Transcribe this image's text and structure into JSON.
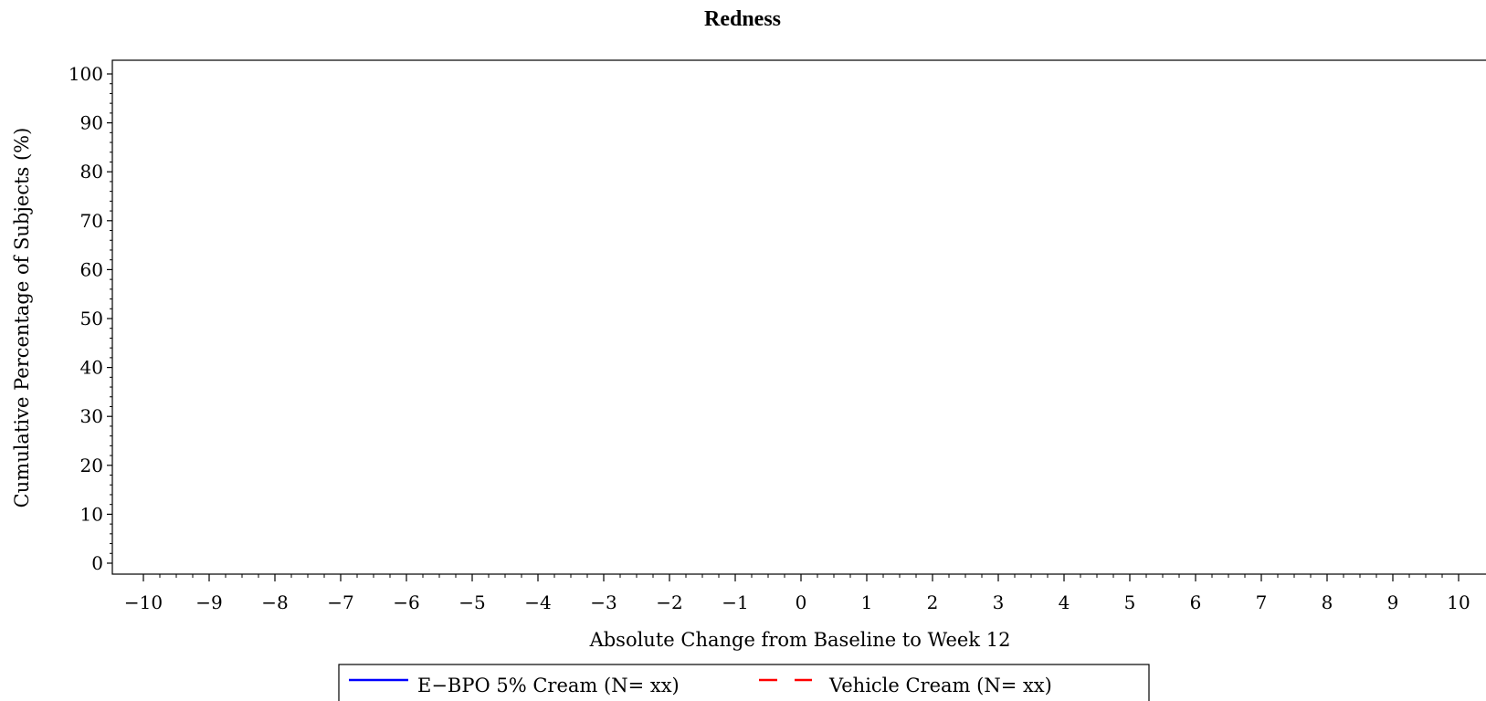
{
  "chart_data": {
    "type": "line",
    "title": "Redness",
    "xlabel": "Absolute Change from Baseline to Week 12",
    "ylabel": "Cumulative Percentage of Subjects (%)",
    "xlim": [
      -10,
      10
    ],
    "ylim": [
      0,
      100
    ],
    "x_ticks": [
      "−10",
      "−9",
      "−8",
      "−7",
      "−6",
      "−5",
      "−4",
      "−3",
      "−2",
      "−1",
      "0",
      "1",
      "2",
      "3",
      "4",
      "5",
      "6",
      "7",
      "8",
      "9",
      "10"
    ],
    "y_ticks": [
      "0",
      "10",
      "20",
      "30",
      "40",
      "50",
      "60",
      "70",
      "80",
      "90",
      "100"
    ],
    "grid": false,
    "legend_position": "bottom",
    "series": [
      {
        "name": "E−BPO 5% Cream (N= xx)",
        "color": "#0000ff",
        "line_style": "solid",
        "x": [],
        "y": []
      },
      {
        "name": "Vehicle Cream (N= xx)",
        "color": "#ff0000",
        "line_style": "dashed",
        "x": [],
        "y": []
      }
    ]
  }
}
